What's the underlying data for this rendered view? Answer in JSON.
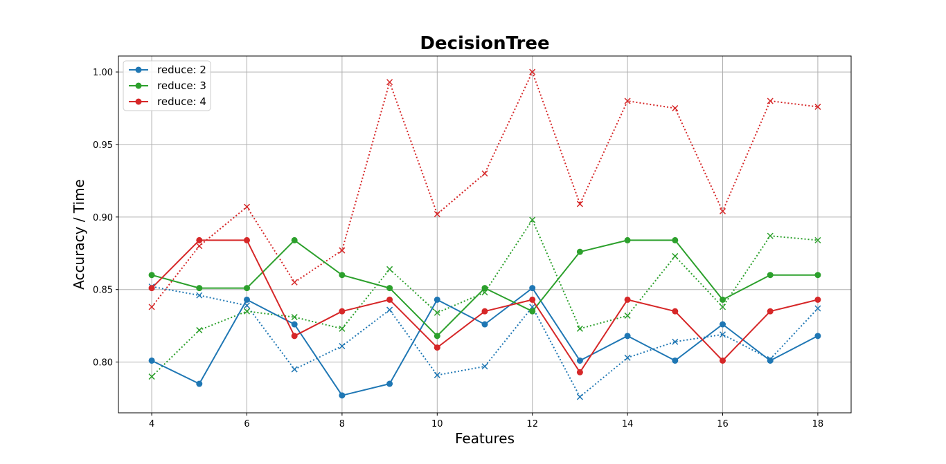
{
  "chart_data": {
    "type": "line",
    "title": "DecisionTree",
    "xlabel": "Features",
    "ylabel": "Accuracy / Time",
    "xlim": [
      3.3,
      18.7
    ],
    "ylim": [
      0.765,
      1.011
    ],
    "xticks": [
      4,
      6,
      8,
      10,
      12,
      14,
      16,
      18
    ],
    "yticks": [
      0.8,
      0.85,
      0.9,
      0.95,
      1.0
    ],
    "ytick_labels": [
      "0.80",
      "0.85",
      "0.90",
      "0.95",
      "1.00"
    ],
    "grid": true,
    "legend_position": "top-left",
    "x": [
      4,
      5,
      6,
      7,
      8,
      9,
      10,
      11,
      12,
      13,
      14,
      15,
      16,
      17,
      18
    ],
    "series": [
      {
        "name": "reduce: 2",
        "style": "solid",
        "marker": "circle",
        "color": "#1f77b4",
        "values": [
          0.801,
          0.785,
          0.843,
          0.826,
          0.777,
          0.785,
          0.843,
          0.826,
          0.851,
          0.801,
          0.818,
          0.801,
          0.826,
          0.801,
          0.818
        ]
      },
      {
        "name": "reduce: 3",
        "style": "solid",
        "marker": "circle",
        "color": "#2ca02c",
        "values": [
          0.86,
          0.851,
          0.851,
          0.884,
          0.86,
          0.851,
          0.818,
          0.851,
          0.835,
          0.876,
          0.884,
          0.884,
          0.843,
          0.86,
          0.86
        ]
      },
      {
        "name": "reduce: 4",
        "style": "solid",
        "marker": "circle",
        "color": "#d62728",
        "values": [
          0.851,
          0.884,
          0.884,
          0.818,
          0.835,
          0.843,
          0.81,
          0.835,
          0.843,
          0.793,
          0.843,
          0.835,
          0.801,
          0.835,
          0.843
        ]
      },
      {
        "style": "dotted",
        "marker": "x",
        "color": "#1f77b4",
        "values": [
          0.852,
          0.846,
          0.839,
          0.795,
          0.811,
          0.836,
          0.791,
          0.797,
          0.838,
          0.776,
          0.803,
          0.814,
          0.819,
          0.802,
          0.837
        ]
      },
      {
        "style": "dotted",
        "marker": "x",
        "color": "#2ca02c",
        "values": [
          0.79,
          0.822,
          0.835,
          0.831,
          0.823,
          0.864,
          0.834,
          0.848,
          0.898,
          0.823,
          0.832,
          0.873,
          0.838,
          0.887,
          0.884
        ]
      },
      {
        "style": "dotted",
        "marker": "x",
        "color": "#d62728",
        "values": [
          0.838,
          0.88,
          0.907,
          0.855,
          0.877,
          0.993,
          0.902,
          0.93,
          1.0,
          0.909,
          0.98,
          0.975,
          0.904,
          0.98,
          0.976
        ]
      }
    ]
  }
}
